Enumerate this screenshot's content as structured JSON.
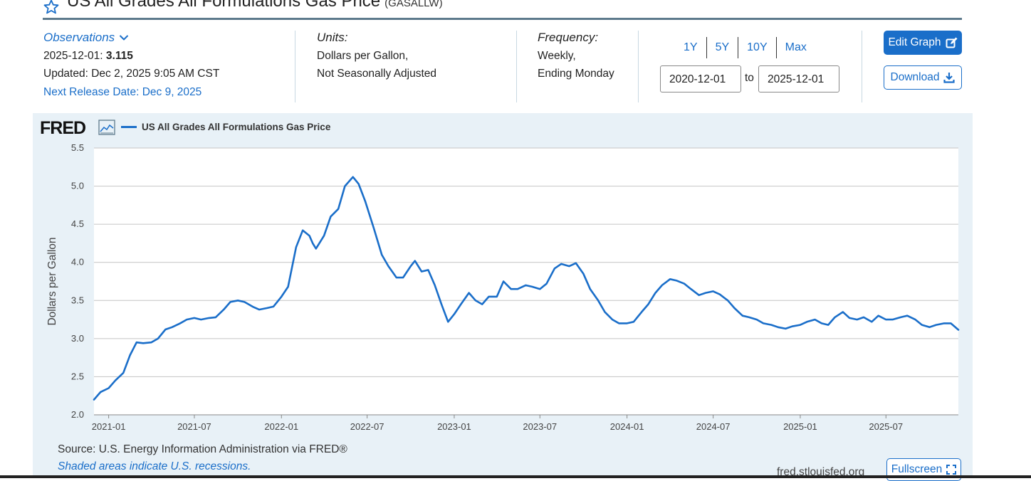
{
  "header": {
    "title": "US All Grades All Formulations Gas Price",
    "series_id": "(GASALLW)"
  },
  "observations": {
    "label": "Observations",
    "date_label": "2025-12-01:",
    "value": "3.115",
    "updated": "Updated: Dec 2, 2025 9:05 AM CST",
    "next_release": "Next Release Date: Dec 9, 2025"
  },
  "units": {
    "label": "Units:",
    "line1": "Dollars per Gallon,",
    "line2": "Not Seasonally Adjusted"
  },
  "frequency": {
    "label": "Frequency:",
    "line1": "Weekly,",
    "line2": "Ending Monday"
  },
  "range": {
    "buttons": [
      "1Y",
      "5Y",
      "10Y",
      "Max"
    ],
    "start": "2020-12-01",
    "to_label": "to",
    "end": "2025-12-01"
  },
  "actions": {
    "edit_graph": "Edit Graph",
    "download": "Download",
    "fullscreen": "Fullscreen"
  },
  "footer": {
    "source": "Source: U.S. Energy Information Administration via FRED®",
    "recession_note": "Shaded areas indicate U.S. recessions.",
    "url": "fred.stlouisfed.org"
  },
  "logo_text": "FRED",
  "colors": {
    "accent": "#1a6ec9",
    "panel_bg": "#e8f1f7",
    "series_line": "#1a6ec9"
  },
  "chart_data": {
    "type": "line",
    "title": "",
    "xlabel": "",
    "ylabel": "Dollars per Gallon",
    "ylim": [
      2.0,
      5.5
    ],
    "y_ticks": [
      "2.0",
      "2.5",
      "3.0",
      "3.5",
      "4.0",
      "4.5",
      "5.0",
      "5.5"
    ],
    "x_ticks": [
      "2021-01",
      "2021-07",
      "2022-01",
      "2022-07",
      "2023-01",
      "2023-07",
      "2024-01",
      "2024-07",
      "2025-01",
      "2025-07"
    ],
    "grid": true,
    "legend": "top-left",
    "series": [
      {
        "name": "US All Grades All Formulations Gas Price",
        "x": [
          "2020-12-01",
          "2020-12-15",
          "2021-01-01",
          "2021-01-15",
          "2021-02-01",
          "2021-02-15",
          "2021-03-01",
          "2021-03-15",
          "2021-04-01",
          "2021-04-15",
          "2021-05-01",
          "2021-05-15",
          "2021-06-01",
          "2021-06-15",
          "2021-07-01",
          "2021-07-15",
          "2021-08-01",
          "2021-08-15",
          "2021-09-01",
          "2021-09-15",
          "2021-10-01",
          "2021-10-15",
          "2021-11-01",
          "2021-11-15",
          "2021-12-01",
          "2021-12-15",
          "2022-01-01",
          "2022-01-15",
          "2022-02-01",
          "2022-02-15",
          "2022-03-01",
          "2022-03-08",
          "2022-03-15",
          "2022-04-01",
          "2022-04-15",
          "2022-05-01",
          "2022-05-15",
          "2022-06-01",
          "2022-06-13",
          "2022-06-27",
          "2022-07-15",
          "2022-08-01",
          "2022-08-15",
          "2022-09-01",
          "2022-09-15",
          "2022-10-01",
          "2022-10-10",
          "2022-10-24",
          "2022-11-07",
          "2022-11-21",
          "2022-12-05",
          "2022-12-19",
          "2023-01-01",
          "2023-01-15",
          "2023-02-01",
          "2023-02-15",
          "2023-03-01",
          "2023-03-15",
          "2023-04-01",
          "2023-04-15",
          "2023-05-01",
          "2023-05-15",
          "2023-06-01",
          "2023-06-15",
          "2023-07-01",
          "2023-07-15",
          "2023-08-01",
          "2023-08-15",
          "2023-09-01",
          "2023-09-15",
          "2023-10-01",
          "2023-10-15",
          "2023-11-01",
          "2023-11-15",
          "2023-12-01",
          "2023-12-15",
          "2024-01-01",
          "2024-01-15",
          "2024-02-01",
          "2024-02-15",
          "2024-03-01",
          "2024-03-15",
          "2024-04-01",
          "2024-04-15",
          "2024-05-01",
          "2024-05-15",
          "2024-06-01",
          "2024-06-15",
          "2024-07-01",
          "2024-07-15",
          "2024-08-01",
          "2024-08-15",
          "2024-09-01",
          "2024-09-15",
          "2024-10-01",
          "2024-10-15",
          "2024-11-01",
          "2024-11-15",
          "2024-12-01",
          "2024-12-15",
          "2025-01-01",
          "2025-01-15",
          "2025-02-01",
          "2025-02-15",
          "2025-03-01",
          "2025-03-15",
          "2025-04-01",
          "2025-04-15",
          "2025-05-01",
          "2025-05-15",
          "2025-06-01",
          "2025-06-15",
          "2025-07-01",
          "2025-07-15",
          "2025-08-01",
          "2025-08-15",
          "2025-09-01",
          "2025-09-15",
          "2025-10-01",
          "2025-10-15",
          "2025-11-01",
          "2025-11-15",
          "2025-12-01"
        ],
        "values": [
          2.2,
          2.3,
          2.35,
          2.45,
          2.55,
          2.78,
          2.95,
          2.94,
          2.95,
          3.0,
          3.12,
          3.15,
          3.2,
          3.25,
          3.27,
          3.25,
          3.27,
          3.28,
          3.38,
          3.48,
          3.5,
          3.48,
          3.42,
          3.38,
          3.4,
          3.42,
          3.55,
          3.68,
          4.2,
          4.42,
          4.35,
          4.25,
          4.18,
          4.35,
          4.6,
          4.7,
          5.0,
          5.12,
          5.03,
          4.8,
          4.45,
          4.1,
          3.95,
          3.8,
          3.8,
          3.95,
          4.02,
          3.88,
          3.9,
          3.7,
          3.45,
          3.22,
          3.32,
          3.45,
          3.6,
          3.5,
          3.45,
          3.55,
          3.55,
          3.75,
          3.65,
          3.65,
          3.7,
          3.68,
          3.65,
          3.72,
          3.92,
          3.98,
          3.95,
          3.99,
          3.85,
          3.65,
          3.5,
          3.35,
          3.25,
          3.2,
          3.2,
          3.22,
          3.35,
          3.45,
          3.6,
          3.7,
          3.78,
          3.76,
          3.72,
          3.65,
          3.57,
          3.6,
          3.62,
          3.58,
          3.5,
          3.4,
          3.3,
          3.28,
          3.25,
          3.2,
          3.18,
          3.15,
          3.13,
          3.16,
          3.18,
          3.22,
          3.25,
          3.2,
          3.18,
          3.28,
          3.35,
          3.27,
          3.25,
          3.28,
          3.22,
          3.3,
          3.25,
          3.25,
          3.28,
          3.3,
          3.25,
          3.18,
          3.15,
          3.18,
          3.2,
          3.2,
          3.115
        ]
      }
    ]
  }
}
